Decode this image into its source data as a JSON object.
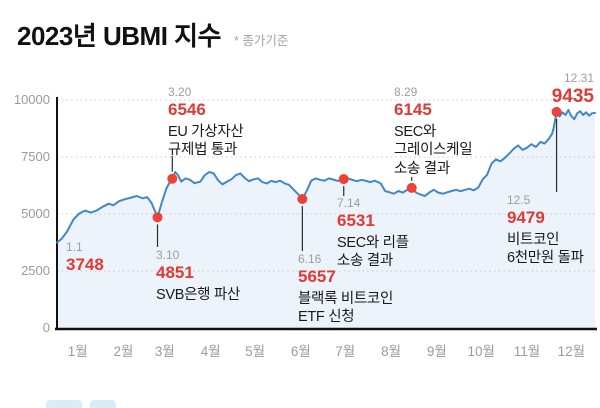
{
  "header": {
    "title": "2023년 UBMI 지수",
    "subtitle": "* 종가기준"
  },
  "chart_data": {
    "type": "line",
    "title": "2023년 UBMI 지수",
    "subtitle": "* 종가기준",
    "series_name": "UBMI 지수 (2023)",
    "ylim": [
      0,
      10000
    ],
    "y_ticks": [
      0,
      2500,
      5000,
      7500,
      10000
    ],
    "x_tick_labels": [
      "1월",
      "2월",
      "3월",
      "4월",
      "5월",
      "6월",
      "7월",
      "8월",
      "9월",
      "10월",
      "11월",
      "12월"
    ],
    "grid": "dotted-horizontal",
    "points": [
      [
        1,
        1,
        3748
      ],
      [
        1,
        4,
        3900
      ],
      [
        1,
        8,
        4250
      ],
      [
        1,
        12,
        4750
      ],
      [
        1,
        16,
        5020
      ],
      [
        1,
        20,
        5150
      ],
      [
        1,
        24,
        5060
      ],
      [
        1,
        28,
        5160
      ],
      [
        2,
        1,
        5320
      ],
      [
        2,
        5,
        5450
      ],
      [
        2,
        8,
        5380
      ],
      [
        2,
        12,
        5560
      ],
      [
        2,
        16,
        5650
      ],
      [
        2,
        20,
        5720
      ],
      [
        2,
        24,
        5790
      ],
      [
        2,
        28,
        5690
      ],
      [
        3,
        3,
        5740
      ],
      [
        3,
        6,
        5480
      ],
      [
        3,
        8,
        5180
      ],
      [
        3,
        10,
        4851
      ],
      [
        3,
        13,
        5520
      ],
      [
        3,
        16,
        6120
      ],
      [
        3,
        18,
        6360
      ],
      [
        3,
        20,
        6546
      ],
      [
        3,
        22,
        6840
      ],
      [
        3,
        24,
        6690
      ],
      [
        3,
        26,
        6420
      ],
      [
        3,
        29,
        6560
      ],
      [
        4,
        1,
        6500
      ],
      [
        4,
        4,
        6350
      ],
      [
        4,
        8,
        6420
      ],
      [
        4,
        11,
        6700
      ],
      [
        4,
        14,
        6840
      ],
      [
        4,
        17,
        6780
      ],
      [
        4,
        20,
        6480
      ],
      [
        4,
        23,
        6300
      ],
      [
        4,
        26,
        6420
      ],
      [
        4,
        29,
        6520
      ],
      [
        5,
        2,
        6700
      ],
      [
        5,
        5,
        6780
      ],
      [
        5,
        8,
        6580
      ],
      [
        5,
        11,
        6440
      ],
      [
        5,
        14,
        6520
      ],
      [
        5,
        17,
        6560
      ],
      [
        5,
        20,
        6400
      ],
      [
        5,
        23,
        6340
      ],
      [
        5,
        26,
        6450
      ],
      [
        5,
        29,
        6400
      ],
      [
        6,
        1,
        6460
      ],
      [
        6,
        4,
        6340
      ],
      [
        6,
        7,
        6280
      ],
      [
        6,
        10,
        6080
      ],
      [
        6,
        13,
        5880
      ],
      [
        6,
        16,
        5657
      ],
      [
        6,
        19,
        6020
      ],
      [
        6,
        22,
        6460
      ],
      [
        6,
        25,
        6560
      ],
      [
        6,
        28,
        6500
      ],
      [
        7,
        1,
        6460
      ],
      [
        7,
        4,
        6560
      ],
      [
        7,
        7,
        6510
      ],
      [
        7,
        10,
        6450
      ],
      [
        7,
        14,
        6531
      ],
      [
        7,
        17,
        6560
      ],
      [
        7,
        20,
        6490
      ],
      [
        7,
        23,
        6440
      ],
      [
        7,
        26,
        6500
      ],
      [
        7,
        29,
        6450
      ],
      [
        8,
        1,
        6400
      ],
      [
        8,
        4,
        6460
      ],
      [
        8,
        8,
        6340
      ],
      [
        8,
        11,
        6010
      ],
      [
        8,
        14,
        5950
      ],
      [
        8,
        17,
        5890
      ],
      [
        8,
        20,
        6010
      ],
      [
        8,
        23,
        5940
      ],
      [
        8,
        26,
        6060
      ],
      [
        8,
        29,
        6145
      ],
      [
        9,
        1,
        5940
      ],
      [
        9,
        4,
        5850
      ],
      [
        9,
        7,
        5790
      ],
      [
        9,
        10,
        5950
      ],
      [
        9,
        13,
        6060
      ],
      [
        9,
        16,
        5940
      ],
      [
        9,
        19,
        5890
      ],
      [
        9,
        22,
        5950
      ],
      [
        9,
        25,
        6010
      ],
      [
        9,
        28,
        6060
      ],
      [
        10,
        1,
        6000
      ],
      [
        10,
        4,
        6060
      ],
      [
        10,
        7,
        6110
      ],
      [
        10,
        10,
        6040
      ],
      [
        10,
        13,
        6160
      ],
      [
        10,
        16,
        6520
      ],
      [
        10,
        19,
        6720
      ],
      [
        10,
        22,
        7210
      ],
      [
        10,
        25,
        7400
      ],
      [
        10,
        28,
        7310
      ],
      [
        10,
        31,
        7460
      ],
      [
        11,
        3,
        7660
      ],
      [
        11,
        6,
        7860
      ],
      [
        11,
        9,
        8010
      ],
      [
        11,
        12,
        7810
      ],
      [
        11,
        15,
        7910
      ],
      [
        11,
        18,
        8060
      ],
      [
        11,
        21,
        7940
      ],
      [
        11,
        24,
        8160
      ],
      [
        11,
        27,
        8090
      ],
      [
        11,
        30,
        8320
      ],
      [
        12,
        2,
        8520
      ],
      [
        12,
        3,
        8760
      ],
      [
        12,
        5,
        9479
      ],
      [
        12,
        7,
        9280
      ],
      [
        12,
        9,
        9460
      ],
      [
        12,
        11,
        9340
      ],
      [
        12,
        13,
        9560
      ],
      [
        12,
        15,
        9290
      ],
      [
        12,
        17,
        9160
      ],
      [
        12,
        19,
        9420
      ],
      [
        12,
        21,
        9510
      ],
      [
        12,
        23,
        9340
      ],
      [
        12,
        25,
        9460
      ],
      [
        12,
        27,
        9310
      ],
      [
        12,
        29,
        9420
      ],
      [
        12,
        31,
        9435
      ]
    ],
    "events": [
      {
        "date": "1.1",
        "value": "3748",
        "lines": [],
        "dot": false
      },
      {
        "date": "3.10",
        "value": "4851",
        "lines": [
          "SVB은행 파산"
        ],
        "dot": true
      },
      {
        "date": "3.20",
        "value": "6546",
        "lines": [
          "EU 가상자산",
          "규제법 통과"
        ],
        "dot": true
      },
      {
        "date": "6.16",
        "value": "5657",
        "lines": [
          "블랙록 비트코인",
          "ETF 신청"
        ],
        "dot": true
      },
      {
        "date": "7.14",
        "value": "6531",
        "lines": [
          "SEC와 리플",
          "소송 결과"
        ],
        "dot": true
      },
      {
        "date": "8.29",
        "value": "6145",
        "lines": [
          "SEC와",
          "그레이스케일",
          "소송 결과"
        ],
        "dot": true
      },
      {
        "date": "12.5",
        "value": "9479",
        "lines": [
          "비트코인",
          "6천만원 돌파"
        ],
        "dot": true
      },
      {
        "date": "12.31",
        "value": "9435",
        "lines": [],
        "dot": false
      }
    ]
  },
  "colors": {
    "line": "#4287c8",
    "area_fill": "#ecf3fa",
    "event_dot": "#ec4237",
    "value_text": "#df3a34",
    "date_text": "#9e9e9e",
    "body_text": "#1a1a1a",
    "axis": "#111111",
    "gridline": "#c9c9c9"
  }
}
